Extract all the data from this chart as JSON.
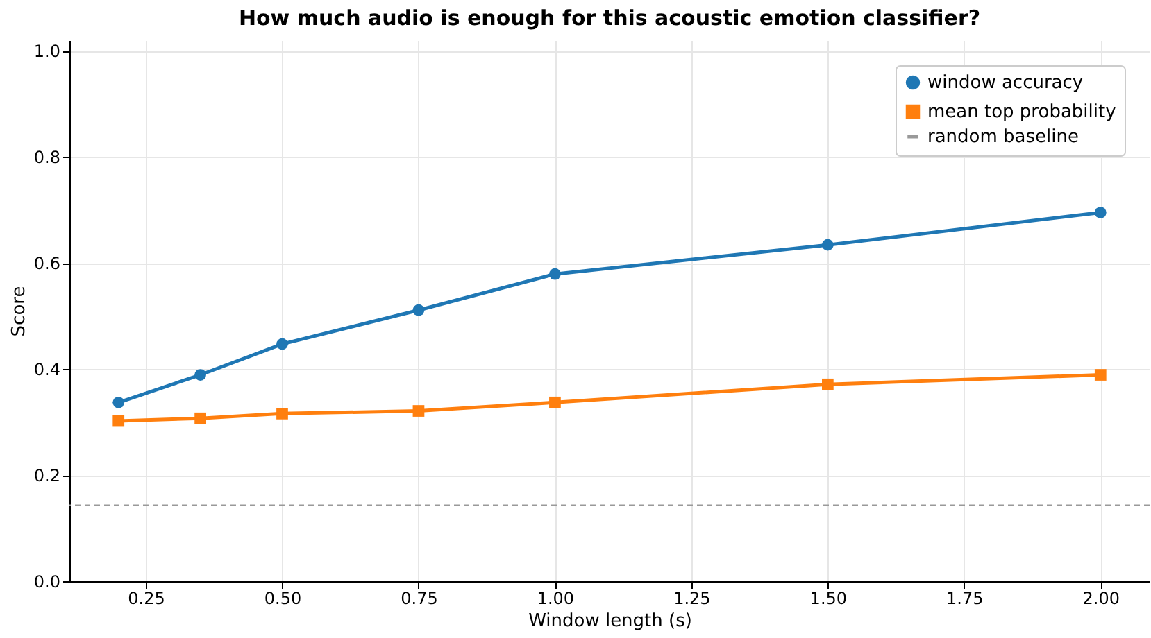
{
  "chart_data": {
    "type": "line",
    "title": "How much audio is enough for this acoustic emotion classifier?",
    "xlabel": "Window length (s)",
    "ylabel": "Score",
    "x": [
      0.2,
      0.35,
      0.5,
      0.75,
      1.0,
      1.5,
      2.0
    ],
    "series": [
      {
        "name": "window accuracy",
        "color": "#1f77b4",
        "marker": "circle",
        "values": [
          0.337,
          0.389,
          0.447,
          0.511,
          0.579,
          0.634,
          0.695
        ]
      },
      {
        "name": "mean top probability",
        "color": "#ff7f0e",
        "marker": "square",
        "values": [
          0.302,
          0.307,
          0.316,
          0.321,
          0.337,
          0.371,
          0.389
        ]
      }
    ],
    "ref_lines": [
      {
        "axis": "y",
        "value": 0.143,
        "label": "random baseline",
        "color": "#999999",
        "line_style": "dashed"
      }
    ],
    "xlim": [
      0.11,
      2.09
    ],
    "ylim": [
      0,
      1.02
    ],
    "xticks": [
      0.25,
      {
        "value": 0.5,
        "label": "0.50"
      },
      0.75,
      {
        "value": 1.0,
        "label": "1.00"
      },
      1.25,
      {
        "value": 1.5,
        "label": "1.50"
      },
      1.75,
      {
        "value": 2.0,
        "label": "2.00"
      }
    ],
    "yticks": [
      {
        "value": 0,
        "label": "0.0"
      },
      0.2,
      0.4,
      0.6,
      0.8,
      {
        "value": 1.0,
        "label": "1.0"
      }
    ],
    "grid": true,
    "legend": "top right",
    "line_style": "solid"
  }
}
